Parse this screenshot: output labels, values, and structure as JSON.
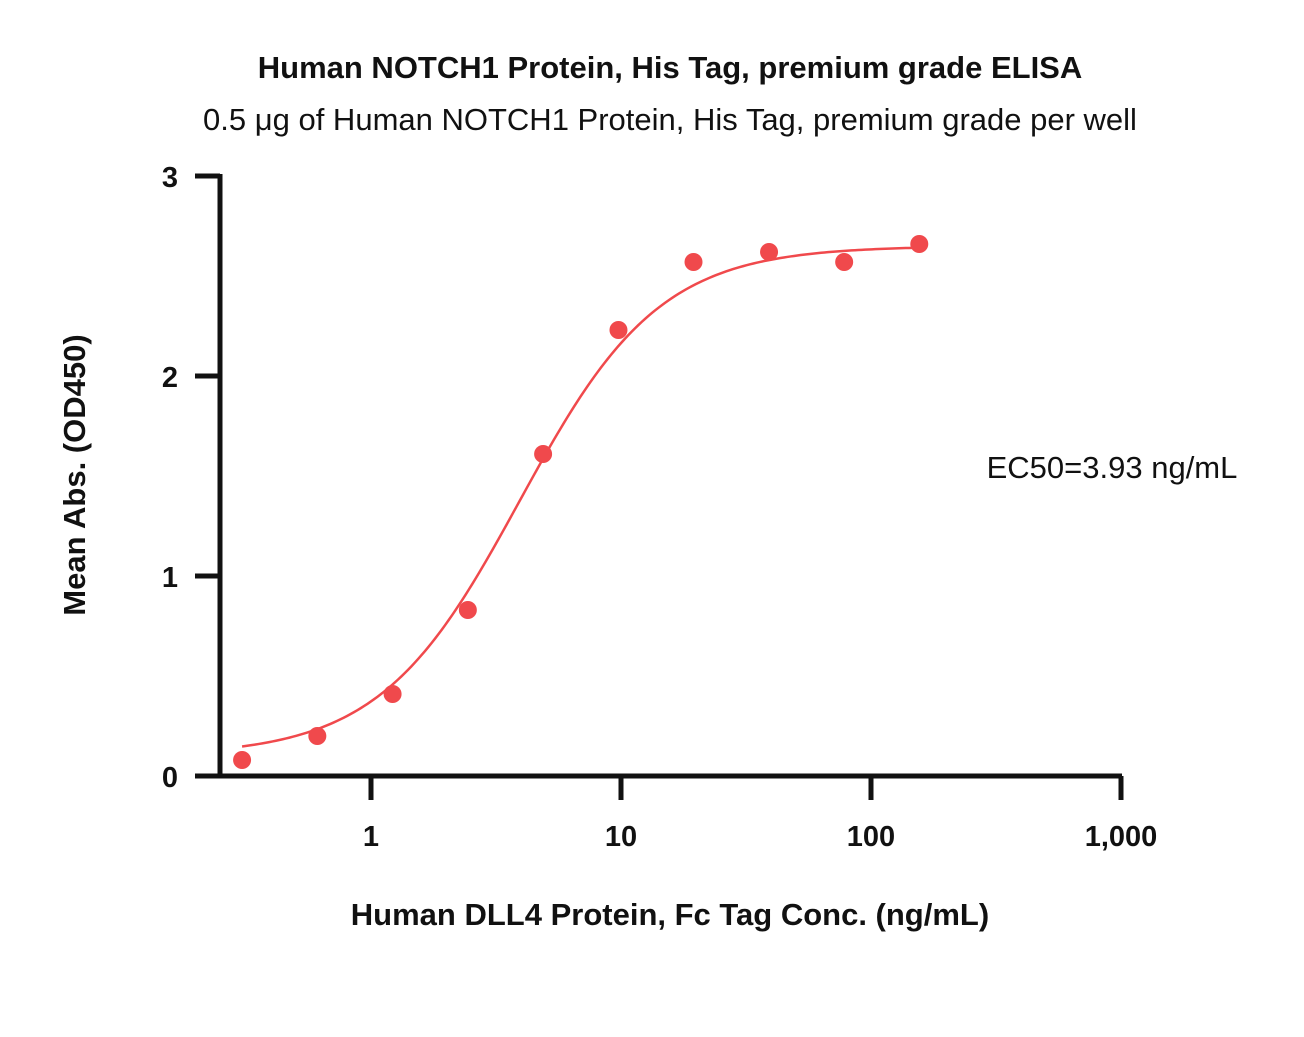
{
  "chart_data": {
    "type": "scatter",
    "title": "Human NOTCH1 Protein, His Tag, premium grade ELISA",
    "subtitle": "0.5 μg of Human NOTCH1 Protein, His Tag, premium grade per well",
    "xlabel": "Human DLL4 Protein, Fc Tag Conc. (ng/mL)",
    "ylabel": "Mean Abs. (OD450)",
    "x_scale": "log",
    "xlim": [
      0.25,
      1000
    ],
    "ylim": [
      0,
      3
    ],
    "x_ticks": [
      1,
      10,
      100,
      1000
    ],
    "x_tick_labels": [
      "1",
      "10",
      "100",
      "1,000"
    ],
    "y_ticks": [
      0,
      1,
      2,
      3
    ],
    "y_tick_labels": [
      "0",
      "1",
      "2",
      "3"
    ],
    "grid": false,
    "color": "#f0494c",
    "series": [
      {
        "x": [
          0.305,
          0.61,
          1.22,
          2.44,
          4.88,
          9.77,
          19.5,
          39.1,
          78.1,
          156
        ],
        "y": [
          0.08,
          0.2,
          0.41,
          0.83,
          1.61,
          2.23,
          2.57,
          2.62,
          2.57,
          2.66
        ]
      }
    ],
    "fit": {
      "model": "4PL",
      "bottom": 0.1,
      "top": 2.65,
      "ec50": 3.93,
      "hill": 1.55
    },
    "annotations": [
      "EC50=3.93 ng/mL"
    ]
  }
}
